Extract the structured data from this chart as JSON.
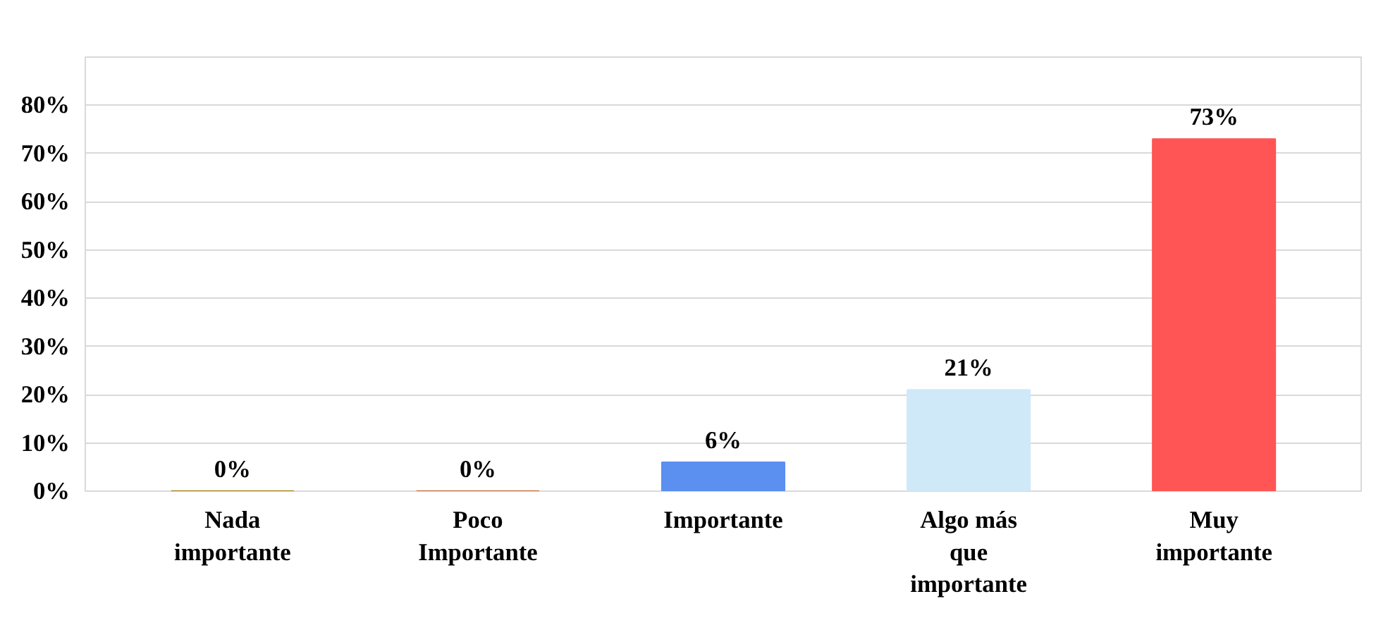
{
  "chart_data": {
    "type": "bar",
    "categories": [
      "Nada\nimportante",
      "Poco\nImportante",
      "Importante",
      "Algo más\nque\nimportante",
      "Muy\nimportante"
    ],
    "values": [
      0,
      0,
      6,
      21,
      73
    ],
    "colors": [
      "#9a7200",
      "#c0602a",
      "#5b8ff0",
      "#cfe9f8",
      "#ff5555"
    ],
    "value_labels": [
      "0%",
      "0%",
      "6%",
      "21%",
      "73%"
    ],
    "ylim": [
      0,
      90
    ],
    "yticks": [
      {
        "value": 0,
        "label": "0%"
      },
      {
        "value": 10,
        "label": "10%"
      },
      {
        "value": 20,
        "label": "20%"
      },
      {
        "value": 30,
        "label": "30%"
      },
      {
        "value": 40,
        "label": "40%"
      },
      {
        "value": 50,
        "label": "50%"
      },
      {
        "value": 60,
        "label": "60%"
      },
      {
        "value": 70,
        "label": "70%"
      },
      {
        "value": 80,
        "label": "80%"
      },
      {
        "value": 90,
        "label": null
      }
    ],
    "grid": "y"
  }
}
